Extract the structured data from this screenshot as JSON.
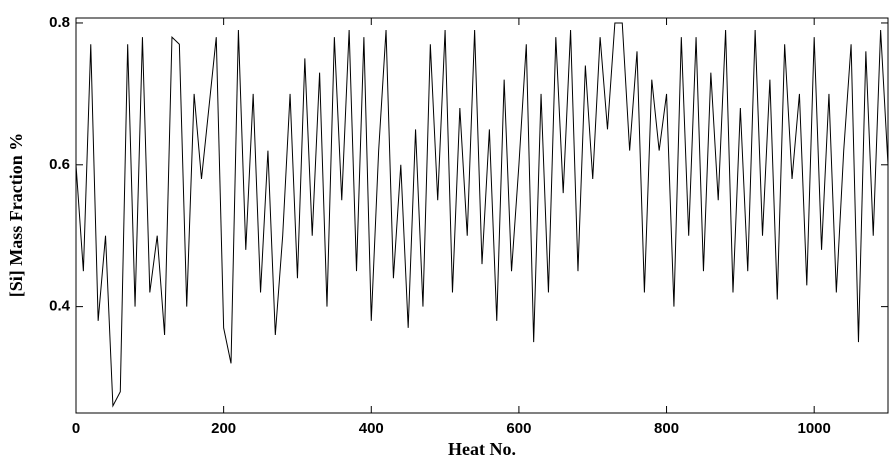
{
  "chart_data": {
    "type": "line",
    "xlabel": "Heat No.",
    "ylabel": "[Si] Mass Fraction %",
    "x": [
      0,
      10,
      20,
      30,
      40,
      50,
      60,
      70,
      80,
      90,
      100,
      110,
      120,
      130,
      140,
      150,
      160,
      170,
      180,
      190,
      200,
      210,
      220,
      230,
      240,
      250,
      260,
      270,
      280,
      290,
      300,
      310,
      320,
      330,
      340,
      350,
      360,
      370,
      380,
      390,
      400,
      410,
      420,
      430,
      440,
      450,
      460,
      470,
      480,
      490,
      500,
      510,
      520,
      530,
      540,
      550,
      560,
      570,
      580,
      590,
      600,
      610,
      620,
      630,
      640,
      650,
      660,
      670,
      680,
      690,
      700,
      710,
      720,
      730,
      740,
      750,
      760,
      770,
      780,
      790,
      800,
      810,
      820,
      830,
      840,
      850,
      860,
      870,
      880,
      890,
      900,
      910,
      920,
      930,
      940,
      950,
      960,
      970,
      980,
      990,
      1000,
      1010,
      1020,
      1030,
      1040,
      1050,
      1060,
      1070,
      1080,
      1090,
      1100
    ],
    "series": [
      {
        "color": "#000000",
        "values": [
          0.6,
          0.45,
          0.77,
          0.38,
          0.5,
          0.26,
          0.28,
          0.77,
          0.4,
          0.78,
          0.42,
          0.5,
          0.36,
          0.78,
          0.77,
          0.4,
          0.7,
          0.58,
          0.68,
          0.78,
          0.37,
          0.32,
          0.79,
          0.48,
          0.7,
          0.42,
          0.62,
          0.36,
          0.5,
          0.7,
          0.44,
          0.75,
          0.5,
          0.73,
          0.4,
          0.78,
          0.55,
          0.79,
          0.45,
          0.78,
          0.38,
          0.62,
          0.79,
          0.44,
          0.6,
          0.37,
          0.65,
          0.4,
          0.77,
          0.55,
          0.79,
          0.42,
          0.68,
          0.5,
          0.79,
          0.46,
          0.65,
          0.38,
          0.72,
          0.45,
          0.6,
          0.77,
          0.35,
          0.7,
          0.42,
          0.78,
          0.56,
          0.79,
          0.45,
          0.74,
          0.58,
          0.78,
          0.65,
          0.8,
          0.8,
          0.62,
          0.76,
          0.42,
          0.72,
          0.62,
          0.7,
          0.4,
          0.78,
          0.5,
          0.78,
          0.45,
          0.73,
          0.55,
          0.79,
          0.42,
          0.68,
          0.45,
          0.79,
          0.5,
          0.72,
          0.41,
          0.77,
          0.58,
          0.7,
          0.43,
          0.78,
          0.48,
          0.7,
          0.42,
          0.62,
          0.77,
          0.35,
          0.76,
          0.5,
          0.79,
          0.6
        ]
      }
    ],
    "xlim": [
      0,
      1100
    ],
    "ylim": [
      0.25,
      0.807
    ],
    "xticks": [
      0,
      200,
      400,
      600,
      800,
      1000
    ],
    "yticks": [
      0.4,
      0.6,
      0.8
    ]
  }
}
